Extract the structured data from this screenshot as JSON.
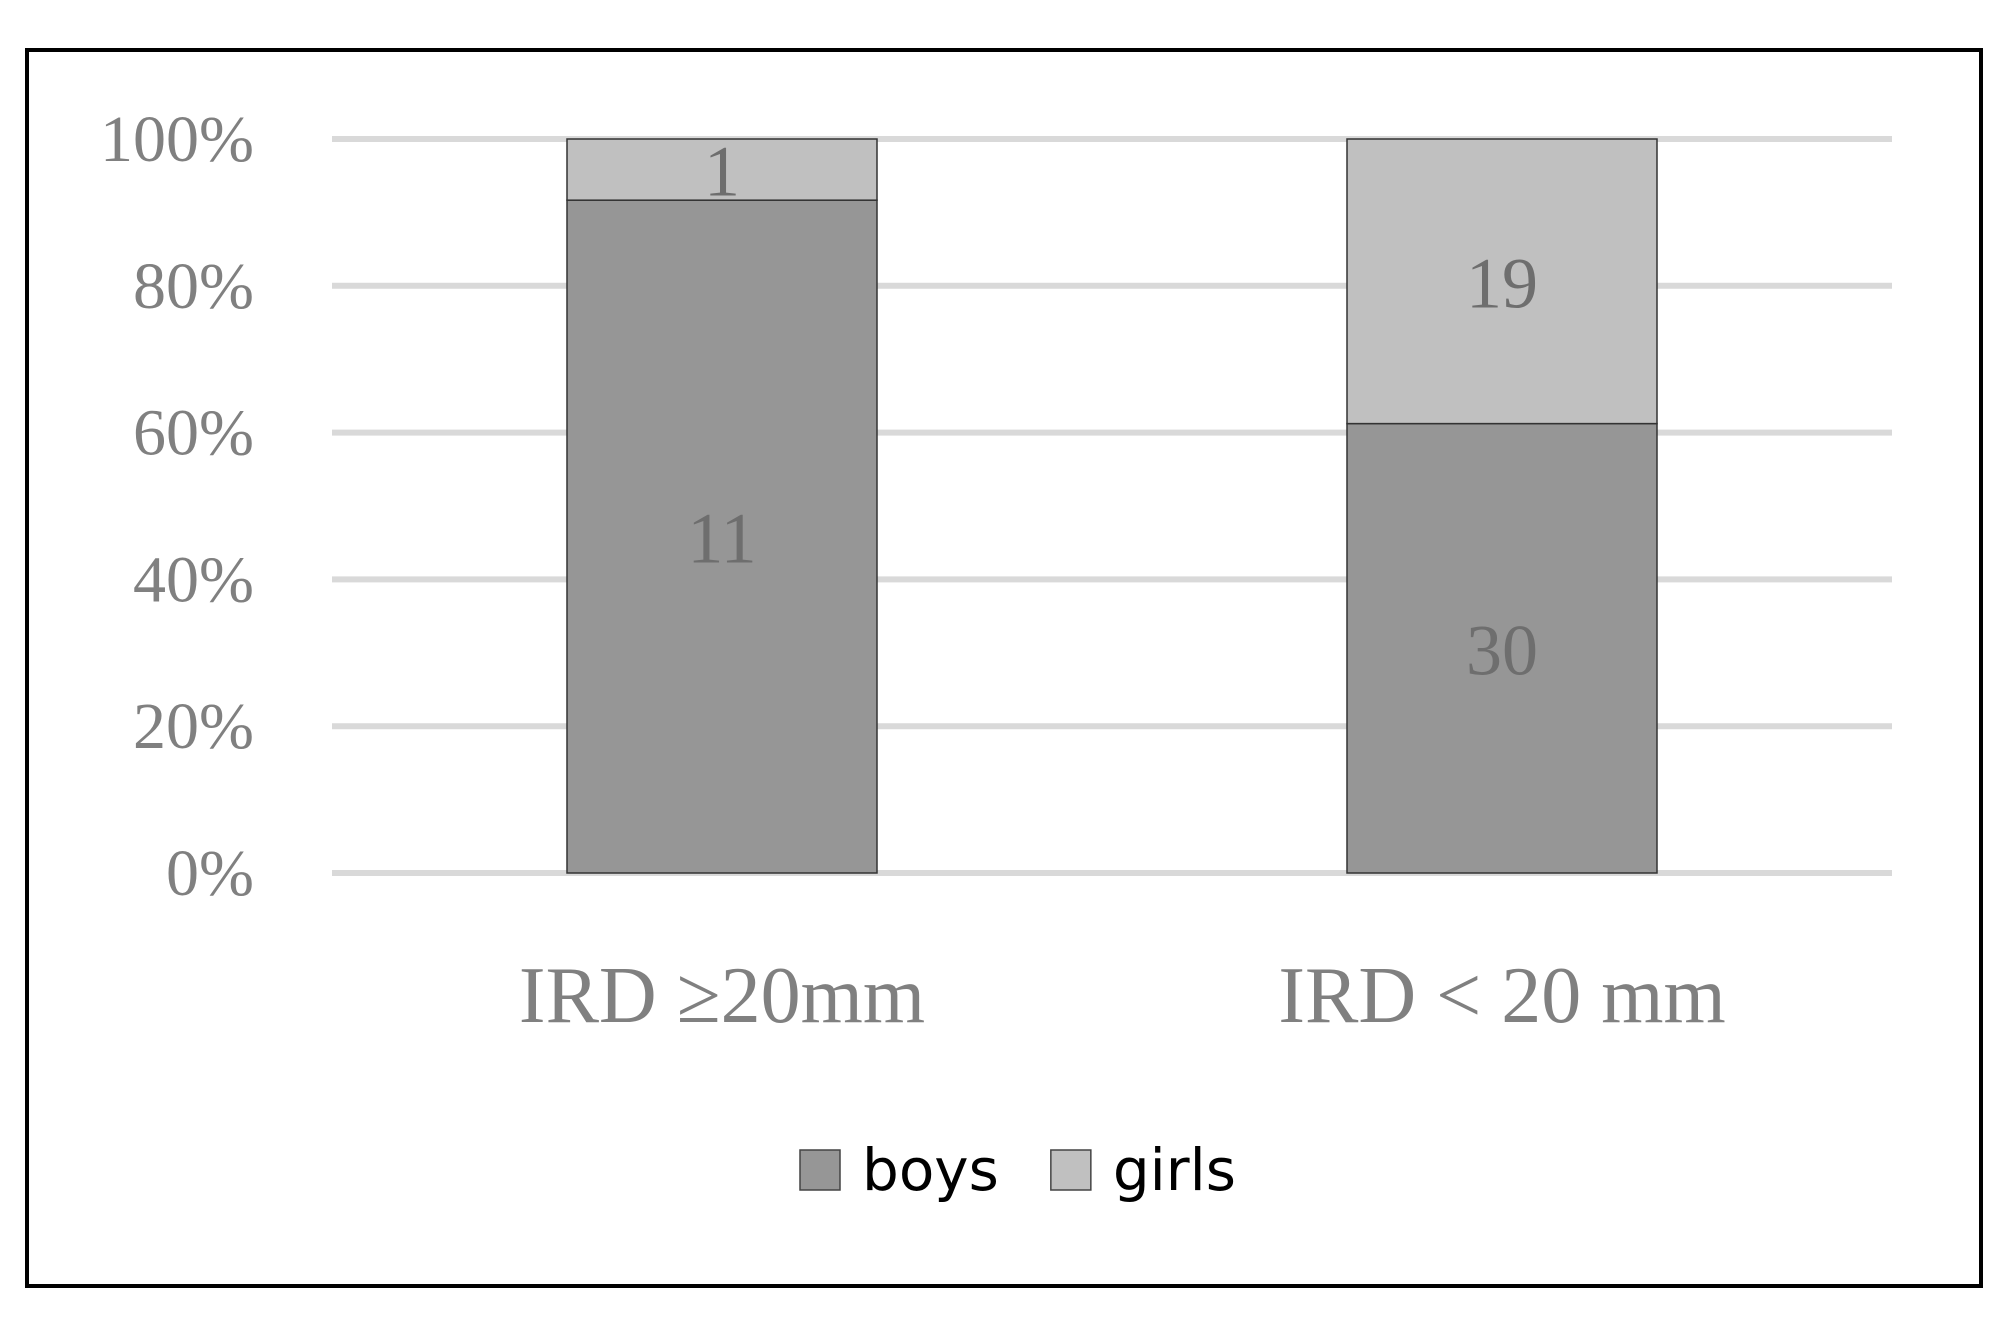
{
  "chart_data": {
    "type": "bar",
    "stacked": true,
    "normalized": true,
    "categories": [
      "IRD ≥20mm",
      "IRD < 20 mm"
    ],
    "series": [
      {
        "name": "boys",
        "values": [
          11,
          30
        ],
        "color": "#969696"
      },
      {
        "name": "girls",
        "values": [
          1,
          19
        ],
        "color": "#c0c0c0"
      }
    ],
    "y_ticks": [
      "0%",
      "20%",
      "40%",
      "60%",
      "80%",
      "100%"
    ],
    "ylim": [
      0,
      100
    ],
    "grid": true,
    "legend": "bottom"
  }
}
